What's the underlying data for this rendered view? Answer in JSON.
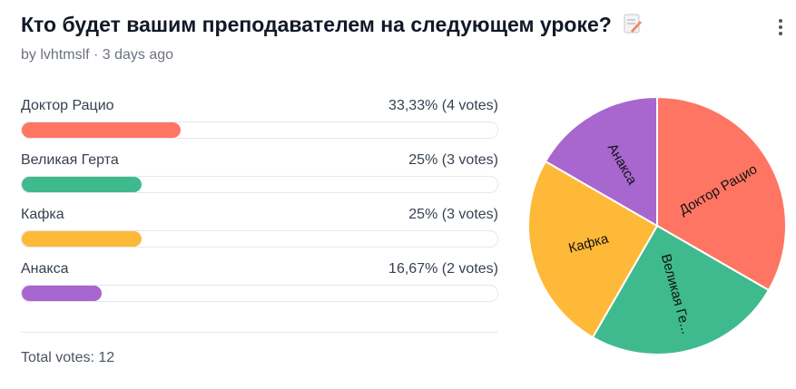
{
  "header": {
    "title": "Кто будет вашим преподавателем на следующем уроке?",
    "byline": "by lvhtmslf · 3 days ago"
  },
  "poll": {
    "options": [
      {
        "name": "Доктор Рацио",
        "result": "33,33% (4 votes)",
        "percent": 33.33,
        "votes": 4,
        "color": "#ff7563",
        "pie_label": "Доктор Рацио"
      },
      {
        "name": "Великая Герта",
        "result": "25% (3 votes)",
        "percent": 25,
        "votes": 3,
        "color": "#3fba8e",
        "pie_label": "Великая Ге..."
      },
      {
        "name": "Кафка",
        "result": "25% (3 votes)",
        "percent": 25,
        "votes": 3,
        "color": "#ffb938",
        "pie_label": "Кафка"
      },
      {
        "name": "Анакса",
        "result": "16,67% (2 votes)",
        "percent": 16.67,
        "votes": 2,
        "color": "#a866cf",
        "pie_label": "Анакса"
      }
    ],
    "total": "Total votes: 12"
  }
}
